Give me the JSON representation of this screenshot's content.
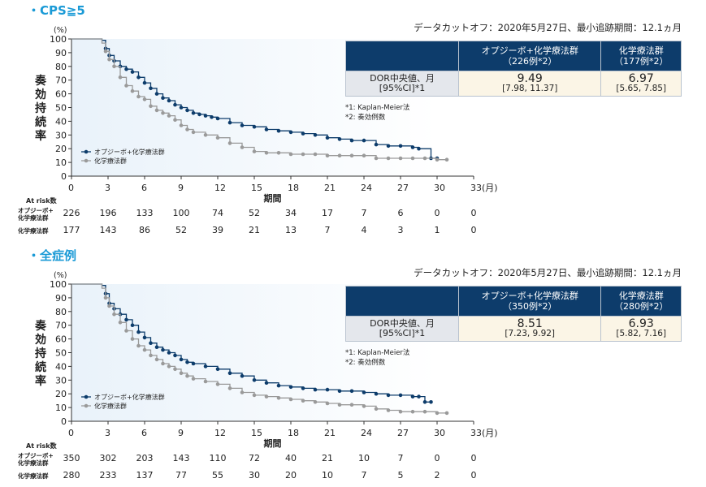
{
  "colors": {
    "nivolumab": "#0d3c6b",
    "chemo": "#9a9a9a",
    "title": "#1a9ad6",
    "table_header": "#0d3c6b",
    "plot_bg": "#e9f2fa"
  },
  "panels": [
    {
      "title": "・CPS≧5",
      "cutoff": "データカットオフ：2020年5月27日、最小追跡期間：12.1ヵ月",
      "table": {
        "col1_line1": "オプジーボ+化学療法群",
        "col1_line2": "（226例*2）",
        "col2_line1": "化学療法群",
        "col2_line2": "（177例*2）",
        "row_label_line1": "DOR中央値、月",
        "row_label_line2": "[95%CI]*1",
        "val1": "9.49",
        "ci1": "[7.98, 11.37]",
        "val2": "6.97",
        "ci2": "[5.65, 7.85]"
      },
      "footnote1": "*1: Kaplan-Meier法",
      "footnote2": "*2: 奏効例数",
      "at_risk_title": "At risk数",
      "at_risk_nivo_label_1": "オプジーボ+",
      "at_risk_nivo_label_2": "化学療法群",
      "at_risk_chemo_label": "化学療法群"
    },
    {
      "title": "・全症例",
      "cutoff": "データカットオフ：2020年5月27日、最小追跡期間：12.1ヵ月",
      "table": {
        "col1_line1": "オプジーボ+化学療法群",
        "col1_line2": "（350例*2）",
        "col2_line1": "化学療法群",
        "col2_line2": "（280例*2）",
        "row_label_line1": "DOR中央値、月",
        "row_label_line2": "[95%CI]*1",
        "val1": "8.51",
        "ci1": "[7.23, 9.92]",
        "val2": "6.93",
        "ci2": "[5.82, 7.16]"
      },
      "footnote1": "*1: Kaplan-Meier法",
      "footnote2": "*2: 奏効例数",
      "at_risk_title": "At risk数",
      "at_risk_nivo_label_1": "オプジーボ+",
      "at_risk_nivo_label_2": "化学療法群",
      "at_risk_chemo_label": "化学療法群"
    }
  ],
  "chart_data": [
    {
      "type": "line",
      "ylabel": "奏効持続率",
      "y_unit": "(%)",
      "xlabel": "期間",
      "x_unit": "(月)",
      "xlim": [
        0,
        33
      ],
      "ylim": [
        0,
        100
      ],
      "xticks": [
        0,
        3,
        6,
        9,
        12,
        15,
        18,
        21,
        24,
        27,
        30,
        33
      ],
      "yticks": [
        0,
        10,
        20,
        30,
        40,
        50,
        60,
        70,
        80,
        90,
        100
      ],
      "legend_position": "bottom-left",
      "series": [
        {
          "name": "オプジーボ+化学療法群",
          "x": [
            0,
            1.2,
            2.5,
            2.8,
            3.1,
            3.5,
            4.0,
            4.5,
            5.0,
            5.5,
            6.0,
            6.5,
            7.0,
            7.5,
            8.0,
            8.5,
            9.0,
            9.5,
            10.0,
            10.5,
            11.0,
            11.5,
            12.0,
            13.0,
            14.0,
            15.0,
            16.0,
            17.0,
            18.0,
            19.0,
            20.0,
            21.0,
            22.0,
            23.0,
            24.0,
            25.0,
            26.0,
            27.0,
            28.0,
            28.5,
            29.5,
            30.0
          ],
          "y": [
            100,
            100,
            99,
            93,
            88,
            84,
            80,
            78,
            76,
            72,
            68,
            64,
            60,
            57,
            55,
            52,
            50,
            48,
            46,
            45,
            44,
            43,
            42,
            39,
            37,
            36,
            34,
            33,
            32,
            31,
            30,
            28,
            27,
            26,
            26,
            23,
            22,
            22,
            21,
            20,
            13,
            13
          ],
          "values_at_risk": [
            226,
            196,
            133,
            100,
            74,
            52,
            34,
            17,
            7,
            6,
            0,
            0
          ]
        },
        {
          "name": "化学療法群",
          "x": [
            0,
            1.2,
            2.5,
            2.8,
            3.1,
            3.5,
            4.0,
            4.5,
            5.0,
            5.5,
            6.0,
            6.5,
            7.0,
            7.5,
            8.0,
            8.5,
            9.0,
            9.5,
            10.0,
            11.0,
            12.0,
            13.0,
            14.0,
            15.0,
            16.0,
            17.0,
            18.0,
            19.0,
            20.0,
            21.0,
            22.0,
            23.0,
            24.0,
            25.0,
            26.0,
            27.0,
            28.0,
            29.0,
            30.0,
            30.8
          ],
          "y": [
            100,
            100,
            97,
            91,
            85,
            80,
            72,
            66,
            62,
            58,
            56,
            51,
            48,
            46,
            44,
            41,
            37,
            34,
            32,
            30,
            28,
            24,
            21,
            18,
            17,
            17,
            16,
            16,
            16,
            15,
            15,
            15,
            15,
            13,
            13,
            13,
            13,
            13,
            12,
            12
          ],
          "values_at_risk": [
            177,
            143,
            86,
            52,
            39,
            21,
            13,
            7,
            4,
            3,
            1,
            0
          ]
        }
      ]
    },
    {
      "type": "line",
      "ylabel": "奏効持続率",
      "y_unit": "(%)",
      "xlabel": "期間",
      "x_unit": "(月)",
      "xlim": [
        0,
        33
      ],
      "ylim": [
        0,
        100
      ],
      "xticks": [
        0,
        3,
        6,
        9,
        12,
        15,
        18,
        21,
        24,
        27,
        30,
        33
      ],
      "yticks": [
        0,
        10,
        20,
        30,
        40,
        50,
        60,
        70,
        80,
        90,
        100
      ],
      "legend_position": "bottom-left",
      "series": [
        {
          "name": "オプジーボ+化学療法群",
          "x": [
            0,
            1.2,
            2.5,
            2.8,
            3.1,
            3.5,
            4.0,
            4.5,
            5.0,
            5.5,
            6.0,
            6.5,
            7.0,
            7.5,
            8.0,
            8.5,
            9.0,
            9.5,
            10.0,
            11.0,
            12.0,
            13.0,
            14.0,
            15.0,
            16.0,
            17.0,
            18.0,
            19.0,
            20.0,
            21.0,
            22.0,
            23.0,
            24.0,
            25.0,
            26.0,
            27.0,
            28.0,
            28.5,
            29.0,
            29.5
          ],
          "y": [
            100,
            100,
            99,
            93,
            86,
            82,
            78,
            74,
            70,
            65,
            61,
            57,
            54,
            52,
            50,
            48,
            45,
            43,
            42,
            40,
            38,
            35,
            33,
            30,
            28,
            26,
            25,
            24,
            23,
            23,
            22,
            22,
            21,
            20,
            19,
            19,
            18,
            18,
            14,
            14
          ],
          "values_at_risk": [
            350,
            302,
            203,
            143,
            110,
            72,
            40,
            21,
            10,
            7,
            0,
            0
          ]
        },
        {
          "name": "化学療法群",
          "x": [
            0,
            1.2,
            2.5,
            2.8,
            3.1,
            3.5,
            4.0,
            4.5,
            5.0,
            5.5,
            6.0,
            6.5,
            7.0,
            7.5,
            8.0,
            8.5,
            9.0,
            9.5,
            10.0,
            11.0,
            12.0,
            13.0,
            14.0,
            15.0,
            16.0,
            17.0,
            18.0,
            19.0,
            20.0,
            21.0,
            22.0,
            23.0,
            24.0,
            25.0,
            26.0,
            27.0,
            28.0,
            29.0,
            30.0,
            30.8
          ],
          "y": [
            100,
            100,
            97,
            90,
            84,
            78,
            72,
            66,
            60,
            55,
            52,
            48,
            45,
            42,
            40,
            38,
            35,
            33,
            31,
            29,
            27,
            24,
            21,
            19,
            18,
            17,
            16,
            15,
            14,
            13,
            12,
            12,
            11,
            9,
            8,
            7,
            7,
            7,
            6,
            6
          ],
          "values_at_risk": [
            280,
            233,
            137,
            77,
            55,
            30,
            20,
            10,
            7,
            5,
            2,
            0
          ]
        }
      ]
    }
  ]
}
